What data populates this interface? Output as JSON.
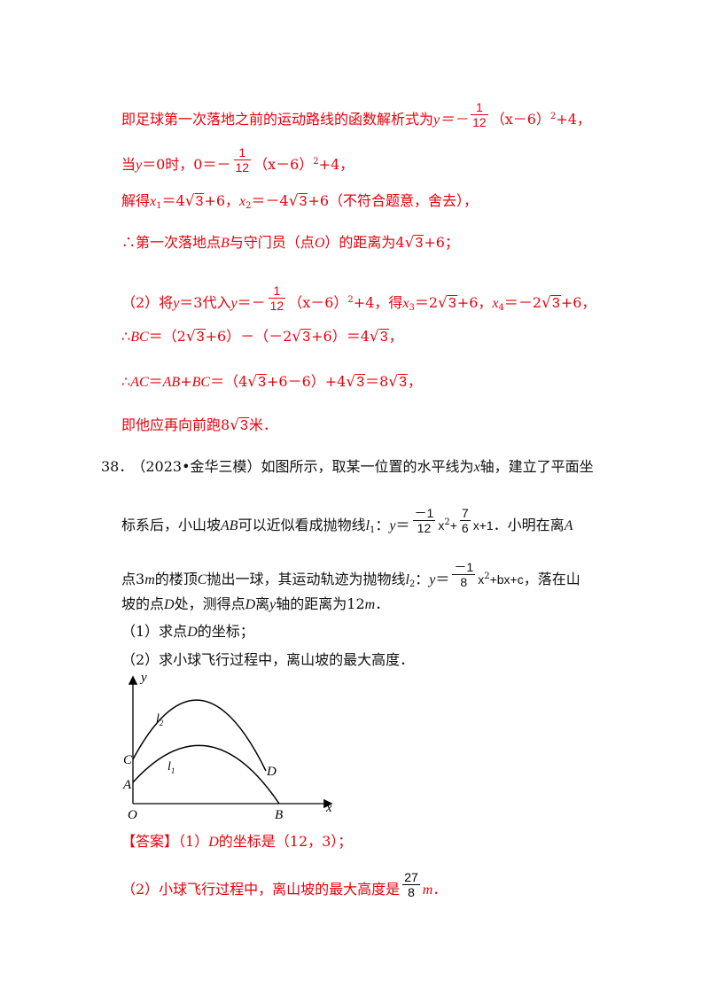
{
  "solution_prev": {
    "l1_text": "即足球第一次落地之前的运动路线的函数解析式为",
    "l1_math": "y＝－",
    "frac_1_12": {
      "num": "1",
      "den": "12"
    },
    "l1_tail": "（x－6）",
    "sq": "2",
    "l1_end": "+4，",
    "l2_text": "当",
    "l2_y": "y",
    "l2_mid": "＝0时，0＝－",
    "l2_tail": "（x－6）",
    "l2_end": "+4，",
    "l3_text": "解得",
    "l3_x1": "x",
    "l3_x1_sub": "1",
    "l3_eq1": "＝4",
    "three": "3",
    "l3_p6": "+6，",
    "l3_x2": "x",
    "l3_x2_sub": "2",
    "l3_eq2": "＝－4",
    "l3_end": "+6（不符合题意，舍去），",
    "l4_text": "∴第一次落地点",
    "l4_B": "B",
    "l4_mid": "与守门员（点",
    "l4_O": "O",
    "l4_mid2": "）的距离为4",
    "l4_end": "+6；",
    "l5_text": "（2）将",
    "l5_y": "y",
    "l5_mid": "＝3代入",
    "l5_y2": "y",
    "l5_eq": "＝－",
    "l5_tail": "（x－6）",
    "l5_mid2": "+4，得",
    "l5_x3": "x",
    "l5_x3_sub": "3",
    "l5_eq3": "＝2",
    "l5_p6": "+6，",
    "l5_x4": "x",
    "l5_x4_sub": "4",
    "l5_eq4": "＝－2",
    "l5_end": "+6，",
    "l6_text": "∴",
    "l6_BC": "BC",
    "l6_eq": "＝（2",
    "l6_mid": "+6）－（－2",
    "l6_mid2": "+6）＝4",
    "l6_end": "，",
    "l7_text": "∴",
    "l7_AC": "AC",
    "l7_eq": "＝",
    "l7_AB": "AB",
    "l7_plus": "+",
    "l7_BC": "BC",
    "l7_mid": "＝（4",
    "l7_mid2": "+6－6）+4",
    "l7_mid3": "＝8",
    "l7_end": "，",
    "l8_text": "即他应再向前跑8",
    "l8_end": "米．"
  },
  "problem": {
    "number": "38．",
    "source": "（2023•金华三模）",
    "p1": "如图所示，取某一位置的水平线为",
    "p1_x": "x",
    "p1_end": "轴，建立了平面坐",
    "p2": "标系后，小山坡",
    "p2_AB": "AB",
    "p2_mid": "可以近似看成抛物线",
    "p2_l": "l",
    "p2_l_sub": "1",
    "p2_colon": "：",
    "p2_y": "y",
    "p2_eq": "＝",
    "eq1_neg_num": "－1",
    "eq1_den": "12",
    "eq1_x2": "x",
    "eq1_plus": "+",
    "eq1_num7": "7",
    "eq1_den6": "6",
    "eq1_tail": "x+1",
    "p2_end": "．小明在离",
    "p2_A": "A",
    "p3": "点3",
    "p3_m": "m",
    "p3_mid": "的楼顶",
    "p3_C": "C",
    "p3_mid2": "抛出一球，其运动轨迹为抛物线",
    "p3_l": "l",
    "p3_l_sub": "2",
    "p3_colon": "：",
    "p3_y": "y",
    "p3_eq": "＝",
    "eq2_neg_num": "－1",
    "eq2_den": "8",
    "eq2_x2": "x",
    "eq2_tail": "+bx+c",
    "p3_end": "，落在山",
    "p4": "坡的点",
    "p4_D": "D",
    "p4_mid": "处，测得点",
    "p4_D2": "D",
    "p4_mid2": "离",
    "p4_y": "y",
    "p4_mid3": "轴的距离为12",
    "p4_m": "m",
    "p4_end": "．",
    "q1": "（1）求点",
    "q1_D": "D",
    "q1_end": "的坐标；",
    "q2": "（2）求小球飞行过程中，离山坡的最大高度．"
  },
  "figure": {
    "y_label": "y",
    "x_label": "x",
    "O": "O",
    "A": "A",
    "B": "B",
    "C": "C",
    "D": "D",
    "l": "l",
    "l1_sub": "1",
    "l2_sub": "2"
  },
  "answer": {
    "tag": "【答案】",
    "a1": "（1）",
    "a1_D": "D",
    "a1_end": "的坐标是（12，3）；",
    "a2": "（2）小球飞行过程中，离山坡的最大高度是",
    "frac_num": "27",
    "frac_den": "8",
    "a2_m": "m",
    "a2_end": "．"
  }
}
